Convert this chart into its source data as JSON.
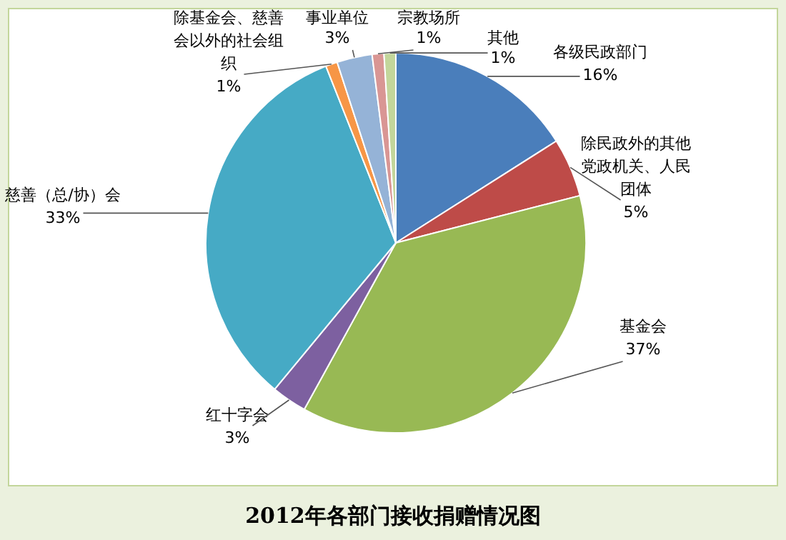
{
  "chart_data": {
    "type": "pie",
    "title": "2012年各部门接收捐赠情况图",
    "categories": [
      "各级民政部门",
      "除民政外的其他党政机关、人民团体",
      "基金会",
      "红十字会",
      "慈善（总/协）会",
      "除基金会、慈善会以外的社会组织",
      "事业单位",
      "宗教场所",
      "其他"
    ],
    "values": [
      16,
      5,
      37,
      3,
      33,
      1,
      3,
      1,
      1
    ],
    "value_labels": [
      "16%",
      "5%",
      "37%",
      "3%",
      "33%",
      "1%",
      "3%",
      "1%",
      "1%"
    ],
    "colors": [
      "#4a7ebb",
      "#be4b48",
      "#98b954",
      "#7d60a0",
      "#46aac5",
      "#f79646",
      "#95b3d7",
      "#d99694",
      "#c3d69b"
    ]
  }
}
